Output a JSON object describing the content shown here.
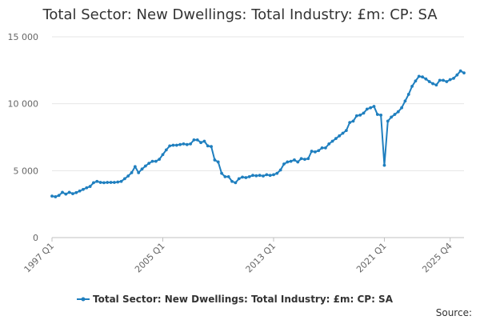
{
  "chart_data": {
    "type": "line",
    "title": "Total Sector: New Dwellings: Total Industry: £m: CP: SA",
    "xlabel": "",
    "ylabel": "",
    "ylim": [
      0,
      15000
    ],
    "yticks": [
      0,
      5000,
      10000,
      15000
    ],
    "ytick_labels": [
      "0",
      "5 000",
      "10 000",
      "15 000"
    ],
    "xtick_labels": [
      "1997 Q1",
      "2005 Q1",
      "2013 Q1",
      "2021 Q1",
      "2025 Q4"
    ],
    "grid": true,
    "legend_position": "bottom",
    "source_label": "Source:",
    "series": [
      {
        "name": "Total Sector: New Dwellings: Total Industry: £m: CP: SA",
        "color": "#1f7fbf",
        "start": "1997 Q1",
        "values": [
          3100,
          3050,
          3150,
          3380,
          3250,
          3380,
          3280,
          3360,
          3480,
          3600,
          3720,
          3820,
          4100,
          4200,
          4120,
          4100,
          4120,
          4120,
          4120,
          4150,
          4200,
          4400,
          4600,
          4850,
          5300,
          4850,
          5120,
          5350,
          5550,
          5700,
          5700,
          5850,
          6200,
          6550,
          6850,
          6900,
          6900,
          6950,
          7000,
          6950,
          7000,
          7300,
          7300,
          7100,
          7200,
          6850,
          6800,
          5800,
          5650,
          4800,
          4550,
          4550,
          4200,
          4100,
          4400,
          4520,
          4480,
          4550,
          4650,
          4620,
          4650,
          4600,
          4700,
          4650,
          4700,
          4800,
          5050,
          5500,
          5650,
          5700,
          5800,
          5650,
          5900,
          5850,
          5900,
          6450,
          6400,
          6500,
          6700,
          6700,
          7000,
          7200,
          7400,
          7600,
          7800,
          8000,
          8600,
          8700,
          9100,
          9150,
          9300,
          9600,
          9700,
          9800,
          9200,
          9150,
          5400,
          8700,
          9000,
          9200,
          9400,
          9700,
          10200,
          10700,
          11300,
          11700,
          12050,
          12000,
          11850,
          11650,
          11500,
          11400,
          11750,
          11750,
          11650,
          11800,
          11900,
          12150,
          12450,
          12300
        ]
      }
    ]
  }
}
